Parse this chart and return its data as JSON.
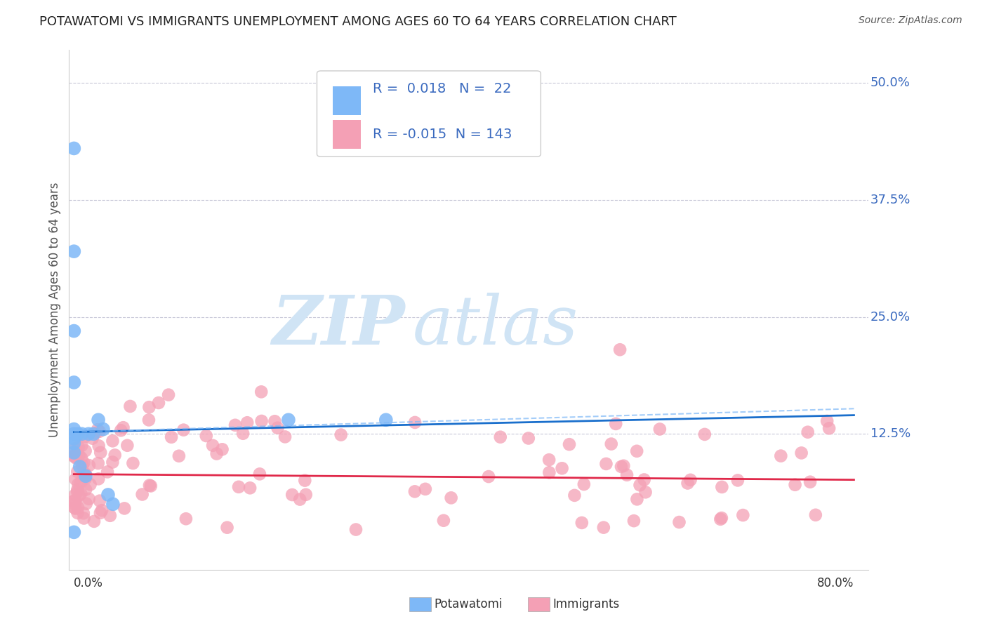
{
  "title": "POTAWATOMI VS IMMIGRANTS UNEMPLOYMENT AMONG AGES 60 TO 64 YEARS CORRELATION CHART",
  "source": "Source: ZipAtlas.com",
  "ylabel": "Unemployment Among Ages 60 to 64 years",
  "xlim": [
    0.0,
    0.8
  ],
  "ylim": [
    0.0,
    0.52
  ],
  "yticks": [
    0.125,
    0.25,
    0.375,
    0.5
  ],
  "ytick_labels": [
    "12.5%",
    "25.0%",
    "37.5%",
    "50.0%"
  ],
  "potawatomi_R": 0.018,
  "potawatomi_N": 22,
  "immigrants_R": -0.015,
  "immigrants_N": 143,
  "potawatomi_color": "#7eb8f7",
  "immigrants_color": "#f4a0b5",
  "trendline_potawatomi_color": "#1a6fcc",
  "trendline_immigrants_color": "#e0294a",
  "trendline_potawatomi_dashed_color": "#7eb8f7",
  "grid_color": "#c8c8d8",
  "legend_text_color": "#3a6abf",
  "title_color": "#222222",
  "source_color": "#555555",
  "ylabel_color": "#555555",
  "watermark_zip_color": "#d0e4f5",
  "watermark_atlas_color": "#d0e4f5",
  "pot_x": [
    0.0,
    0.0,
    0.0,
    0.0,
    0.0,
    0.0,
    0.0,
    0.004,
    0.006,
    0.008,
    0.012,
    0.015,
    0.02,
    0.025,
    0.03,
    0.035,
    0.04,
    0.22,
    0.32,
    0.0,
    0.0,
    0.0
  ],
  "pot_y": [
    0.43,
    0.32,
    0.235,
    0.18,
    0.13,
    0.125,
    0.12,
    0.125,
    0.09,
    0.125,
    0.08,
    0.125,
    0.125,
    0.14,
    0.13,
    0.06,
    0.05,
    0.14,
    0.14,
    0.115,
    0.105,
    0.02
  ],
  "pot_trend_x": [
    0.0,
    0.8
  ],
  "pot_trend_y": [
    0.127,
    0.145
  ],
  "pot_dashed_trend_x": [
    0.0,
    0.8
  ],
  "pot_dashed_trend_y": [
    0.132,
    0.148
  ],
  "imm_trend_x": [
    0.0,
    0.8
  ],
  "imm_trend_y": [
    0.082,
    0.076
  ],
  "imm_outlier_x": [
    0.56
  ],
  "imm_outlier_y": [
    0.215
  ]
}
